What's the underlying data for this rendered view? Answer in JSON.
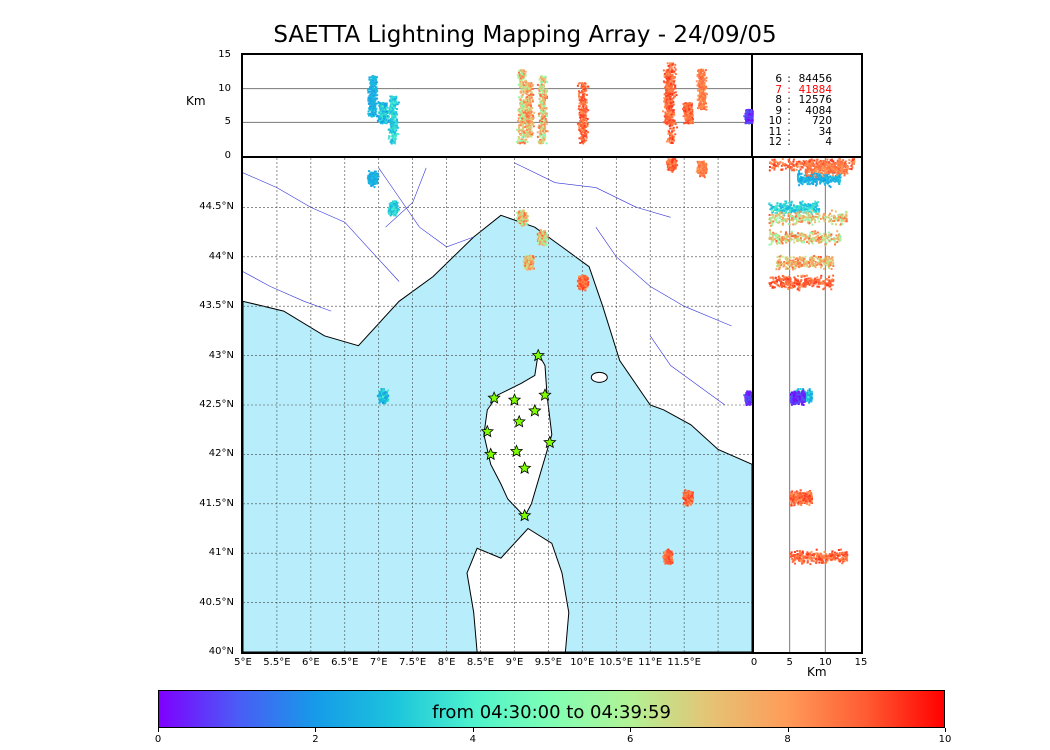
{
  "chart_data": {
    "type": "scatter",
    "title": "SAETTA Lightning Mapping Array - 24/09/05",
    "time_range_label": "from 04:30:00 to 04:39:59",
    "colorbar": {
      "min": 0,
      "max": 10,
      "ticks": [
        "0",
        "2",
        "4",
        "6",
        "8",
        "10"
      ]
    },
    "map": {
      "lon_range": [
        5,
        12.5
      ],
      "lat_range": [
        40,
        45
      ],
      "lon_ticks": [
        "5°E",
        "5.5°E",
        "6°E",
        "6.5°E",
        "7°E",
        "7.5°E",
        "8°E",
        "8.5°E",
        "9°E",
        "9.5°E",
        "10°E",
        "10.5°E",
        "11°E",
        "11.5°E"
      ],
      "lat_ticks": [
        "40°N",
        "40.5°N",
        "41°N",
        "41.5°N",
        "42°N",
        "42.5°N",
        "43°N",
        "43.5°N",
        "44°N",
        "44.5°N"
      ],
      "sea_color": "#b8eefb",
      "grid": true
    },
    "altitude_panel": {
      "ylabel": "Km",
      "y_ticks": [
        "0",
        "5",
        "10",
        "15"
      ]
    },
    "side_panel": {
      "xlabel": "Km",
      "x_ticks": [
        "0",
        "5",
        "10",
        "15"
      ]
    },
    "stations": [
      [
        9.35,
        43.0
      ],
      [
        8.7,
        42.57
      ],
      [
        9.0,
        42.55
      ],
      [
        9.45,
        42.6
      ],
      [
        9.3,
        42.44
      ],
      [
        9.07,
        42.33
      ],
      [
        8.6,
        42.23
      ],
      [
        9.52,
        42.12
      ],
      [
        9.03,
        42.03
      ],
      [
        8.65,
        42.0
      ],
      [
        9.15,
        41.86
      ],
      [
        9.15,
        41.38
      ]
    ],
    "clusters": [
      {
        "lon": 6.9,
        "lat": 44.8,
        "alt_min": 6,
        "alt_max": 12,
        "time_min": 2,
        "time_max": 3
      },
      {
        "lon": 7.2,
        "lat": 44.5,
        "alt_min": 2,
        "alt_max": 9,
        "time_min": 2.5,
        "time_max": 4
      },
      {
        "lon": 9.1,
        "lat": 44.4,
        "alt_min": 2,
        "alt_max": 13,
        "time_min": 5,
        "time_max": 9
      },
      {
        "lon": 9.4,
        "lat": 44.2,
        "alt_min": 2,
        "alt_max": 12,
        "time_min": 5,
        "time_max": 9
      },
      {
        "lon": 9.2,
        "lat": 43.95,
        "alt_min": 3,
        "alt_max": 11,
        "time_min": 6,
        "time_max": 9
      },
      {
        "lon": 10.0,
        "lat": 43.75,
        "alt_min": 2,
        "alt_max": 11,
        "time_min": 8,
        "time_max": 9.5
      },
      {
        "lon": 11.3,
        "lat": 44.95,
        "alt_min": 2,
        "alt_max": 14,
        "time_min": 8,
        "time_max": 9.5
      },
      {
        "lon": 11.75,
        "lat": 44.9,
        "alt_min": 7,
        "alt_max": 13,
        "time_min": 8,
        "time_max": 9
      },
      {
        "lon": 7.05,
        "lat": 42.6,
        "alt_min": 5,
        "alt_max": 8,
        "time_min": 2,
        "time_max": 4
      },
      {
        "lon": 11.25,
        "lat": 40.97,
        "alt_min": 5,
        "alt_max": 13,
        "time_min": 8,
        "time_max": 9.5
      },
      {
        "lon": 11.55,
        "lat": 41.57,
        "alt_min": 5,
        "alt_max": 8,
        "time_min": 8,
        "time_max": 9.5
      },
      {
        "lon": 12.45,
        "lat": 42.58,
        "alt_min": 5,
        "alt_max": 7,
        "time_min": 0,
        "time_max": 1
      }
    ],
    "altitude_stats": [
      {
        "alt": "6",
        "count": "84456",
        "highlight": false
      },
      {
        "alt": "7",
        "count": "41884",
        "highlight": true
      },
      {
        "alt": "8",
        "count": "12576",
        "highlight": false
      },
      {
        "alt": "9",
        "count": "4084",
        "highlight": false
      },
      {
        "alt": "10",
        "count": "720",
        "highlight": false
      },
      {
        "alt": "11",
        "count": "34",
        "highlight": false
      },
      {
        "alt": "12",
        "count": "4",
        "highlight": false
      }
    ],
    "highlight_color": "#ff0000"
  }
}
